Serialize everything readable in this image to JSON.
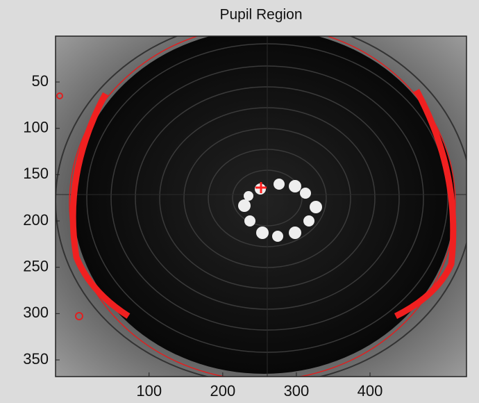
{
  "chart_data": {
    "type": "image",
    "title": "Pupil Region",
    "xlim": [
      -27,
      531
    ],
    "xticks": [
      100,
      200,
      300,
      400
    ],
    "ylim": [
      0.5,
      368
    ],
    "yticks": [
      50,
      100,
      150,
      200,
      250,
      300,
      350
    ]
  }
}
